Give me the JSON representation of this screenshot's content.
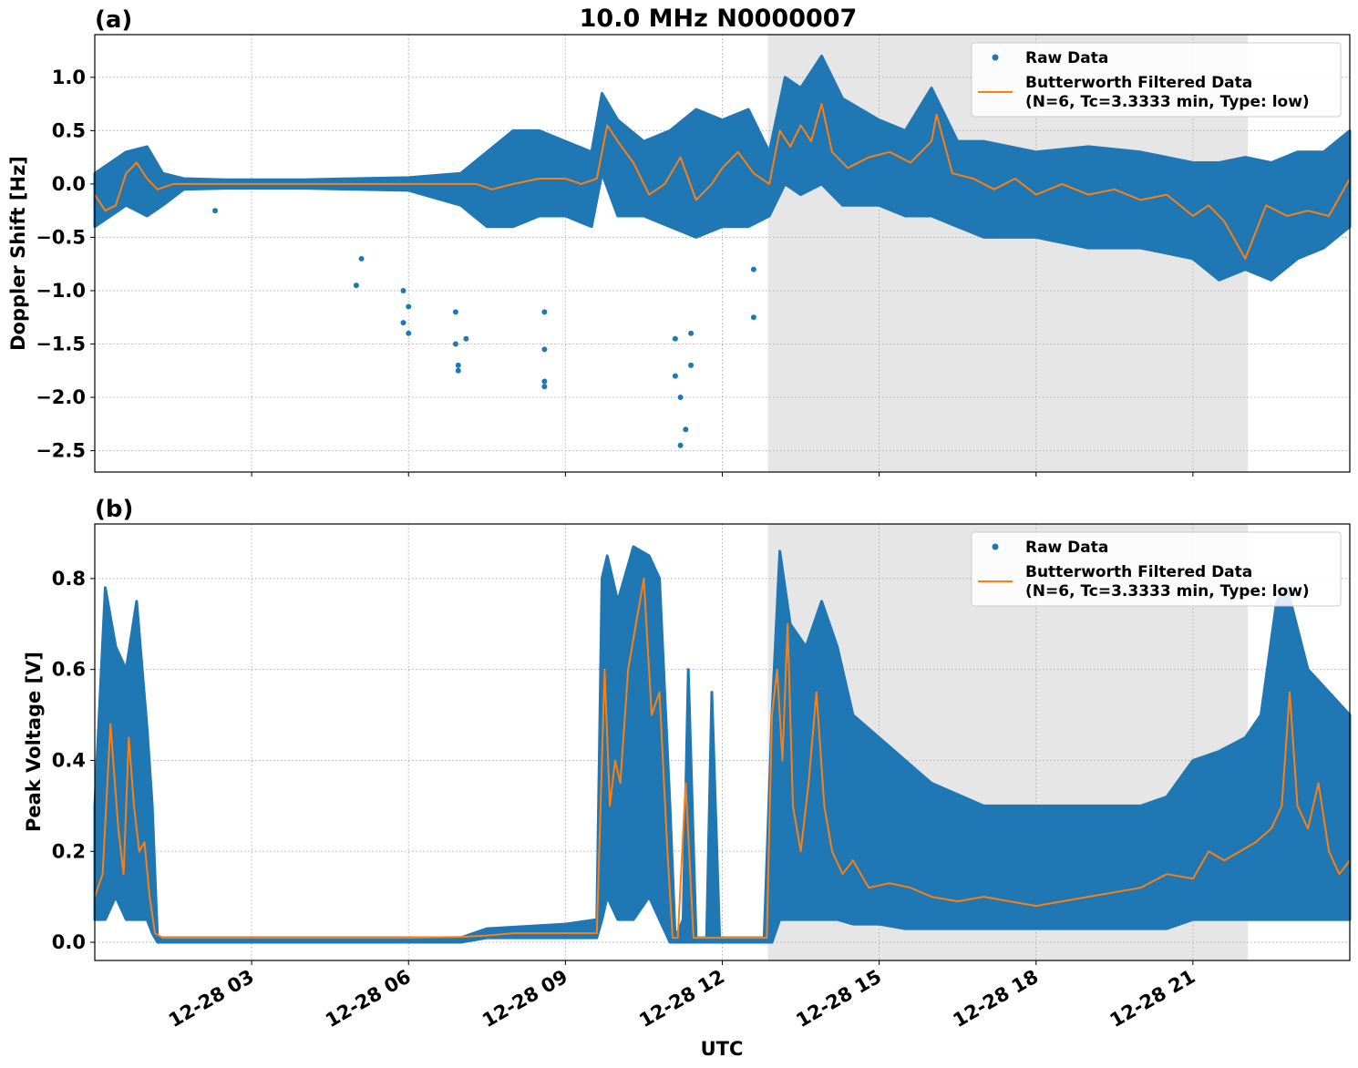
{
  "title": "10.0 MHz N0000007",
  "xlabel": "UTC",
  "xticks": [
    "12-28 03",
    "12-28 06",
    "12-28 09",
    "12-28 12",
    "12-28 15",
    "12-28 18",
    "12-28 21"
  ],
  "legend": {
    "raw_label": "Raw Data",
    "filtered_label_line1": "Butterworth Filtered Data",
    "filtered_label_line2": "(N=6, Tc=3.3333 min, Type: low)",
    "placement": "top-right"
  },
  "colors": {
    "raw": "#1f77b4",
    "filtered": "#ff7f0e",
    "shade": "#e6e6e6",
    "grid": "#b0b0b0"
  },
  "chart_data": [
    {
      "type": "scatter",
      "panel_label": "(a)",
      "ylabel": "Doppler Shift [Hz]",
      "xlim_hours": [
        0.0,
        24.0
      ],
      "ylim": [
        -2.7,
        1.4
      ],
      "yticks": [
        1.0,
        0.5,
        0.0,
        -0.5,
        -1.0,
        -1.5,
        -2.0,
        -2.5
      ],
      "ytick_labels": [
        "1.0",
        "0.5",
        "0.0",
        "−0.5",
        "−1.0",
        "−1.5",
        "−2.0",
        "−2.5"
      ],
      "grid": true,
      "shaded_interval_hours": [
        12.87,
        22.05
      ],
      "series": [
        {
          "name": "Raw Data",
          "style": "band",
          "x": [
            0.0,
            0.3,
            0.6,
            1.0,
            1.3,
            1.7,
            2.5,
            4.0,
            5.0,
            6.0,
            7.0,
            7.5,
            8.0,
            8.5,
            9.0,
            9.5,
            9.7,
            10.0,
            10.5,
            11.0,
            11.5,
            12.0,
            12.5,
            12.9,
            13.2,
            13.5,
            13.9,
            14.3,
            15.0,
            15.5,
            16.0,
            16.5,
            17.0,
            18.0,
            19.0,
            20.0,
            21.0,
            21.5,
            22.0,
            22.5,
            23.0,
            23.5,
            24.0
          ],
          "upper": [
            0.1,
            0.2,
            0.3,
            0.35,
            0.1,
            0.05,
            0.04,
            0.04,
            0.05,
            0.06,
            0.1,
            0.3,
            0.5,
            0.5,
            0.4,
            0.3,
            0.85,
            0.6,
            0.4,
            0.5,
            0.7,
            0.6,
            0.7,
            0.3,
            1.0,
            0.9,
            1.2,
            0.8,
            0.6,
            0.5,
            0.9,
            0.4,
            0.4,
            0.3,
            0.35,
            0.3,
            0.2,
            0.2,
            0.25,
            0.2,
            0.3,
            0.3,
            0.5
          ],
          "lower": [
            -0.4,
            -0.3,
            -0.2,
            -0.3,
            -0.2,
            -0.05,
            -0.04,
            -0.04,
            -0.05,
            -0.06,
            -0.2,
            -0.4,
            -0.4,
            -0.3,
            -0.3,
            -0.4,
            0.1,
            -0.3,
            -0.3,
            -0.4,
            -0.5,
            -0.4,
            -0.4,
            -0.3,
            0.0,
            -0.1,
            0.0,
            -0.2,
            -0.2,
            -0.3,
            -0.3,
            -0.4,
            -0.5,
            -0.5,
            -0.6,
            -0.6,
            -0.7,
            -0.9,
            -0.8,
            -0.9,
            -0.7,
            -0.6,
            -0.4
          ]
        },
        {
          "name": "Raw Data",
          "style": "outliers",
          "x": [
            2.3,
            5.0,
            5.1,
            5.9,
            5.9,
            6.0,
            6.0,
            6.9,
            6.9,
            6.95,
            6.95,
            7.1,
            8.6,
            8.6,
            8.6,
            8.6,
            11.1,
            11.1,
            11.2,
            11.2,
            11.3,
            11.4,
            11.4,
            12.6,
            12.6
          ],
          "y": [
            -0.25,
            -0.95,
            -0.7,
            -1.0,
            -1.3,
            -1.4,
            -1.15,
            -1.2,
            -1.5,
            -1.75,
            -1.7,
            -1.45,
            -1.2,
            -1.55,
            -1.85,
            -1.9,
            -1.45,
            -1.8,
            -2.0,
            -2.45,
            -2.3,
            -1.7,
            -1.4,
            -1.25,
            -0.8
          ]
        },
        {
          "name": "Butterworth Filtered Data",
          "style": "line",
          "x": [
            0.0,
            0.2,
            0.4,
            0.6,
            0.8,
            1.0,
            1.2,
            1.5,
            2.0,
            3.0,
            4.0,
            5.0,
            6.0,
            7.0,
            7.3,
            7.6,
            8.0,
            8.5,
            9.0,
            9.3,
            9.6,
            9.8,
            10.0,
            10.3,
            10.6,
            10.9,
            11.2,
            11.5,
            11.8,
            12.0,
            12.3,
            12.6,
            12.9,
            13.1,
            13.3,
            13.5,
            13.7,
            13.9,
            14.1,
            14.4,
            14.8,
            15.2,
            15.6,
            16.0,
            16.1,
            16.4,
            16.8,
            17.2,
            17.6,
            18.0,
            18.5,
            19.0,
            19.5,
            20.0,
            20.5,
            21.0,
            21.3,
            21.6,
            22.0,
            22.4,
            22.8,
            23.2,
            23.6,
            24.0
          ],
          "y": [
            -0.1,
            -0.25,
            -0.2,
            0.1,
            0.2,
            0.05,
            -0.05,
            0.0,
            0.0,
            0.0,
            0.0,
            0.0,
            0.0,
            0.0,
            0.0,
            -0.05,
            0.0,
            0.05,
            0.05,
            0.0,
            0.05,
            0.55,
            0.4,
            0.2,
            -0.1,
            0.0,
            0.25,
            -0.15,
            0.0,
            0.15,
            0.3,
            0.1,
            0.0,
            0.5,
            0.35,
            0.55,
            0.4,
            0.75,
            0.3,
            0.15,
            0.25,
            0.3,
            0.2,
            0.4,
            0.65,
            0.1,
            0.05,
            -0.05,
            0.05,
            -0.1,
            0.0,
            -0.1,
            -0.05,
            -0.15,
            -0.1,
            -0.3,
            -0.2,
            -0.35,
            -0.7,
            -0.2,
            -0.3,
            -0.25,
            -0.3,
            0.05
          ]
        }
      ]
    },
    {
      "type": "scatter",
      "panel_label": "(b)",
      "ylabel": "Peak Voltage [V]",
      "xlim_hours": [
        0.0,
        24.0
      ],
      "ylim": [
        -0.04,
        0.92
      ],
      "yticks": [
        0.0,
        0.2,
        0.4,
        0.6,
        0.8
      ],
      "ytick_labels": [
        "0.0",
        "0.2",
        "0.4",
        "0.6",
        "0.8"
      ],
      "grid": true,
      "shaded_interval_hours": [
        12.87,
        22.05
      ],
      "series": [
        {
          "name": "Raw Data",
          "style": "band",
          "x": [
            0.0,
            0.2,
            0.4,
            0.6,
            0.8,
            1.0,
            1.1,
            1.2,
            1.5,
            3.0,
            6.0,
            7.0,
            7.5,
            9.0,
            9.6,
            9.7,
            9.8,
            10.0,
            10.3,
            10.6,
            10.8,
            11.0,
            11.1,
            11.25,
            11.35,
            11.5,
            11.7,
            11.8,
            11.95,
            12.2,
            12.8,
            12.95,
            13.1,
            13.3,
            13.6,
            13.9,
            14.2,
            14.5,
            15.0,
            15.5,
            16.0,
            17.0,
            18.0,
            19.0,
            20.0,
            20.5,
            21.0,
            21.5,
            22.0,
            22.3,
            22.6,
            22.8,
            23.2,
            23.6,
            24.0
          ],
          "upper": [
            0.3,
            0.78,
            0.65,
            0.6,
            0.75,
            0.47,
            0.3,
            0.01,
            0.01,
            0.01,
            0.01,
            0.01,
            0.03,
            0.04,
            0.05,
            0.8,
            0.85,
            0.75,
            0.87,
            0.85,
            0.8,
            0.3,
            0.01,
            0.05,
            0.6,
            0.01,
            0.01,
            0.55,
            0.01,
            0.01,
            0.01,
            0.5,
            0.86,
            0.7,
            0.65,
            0.75,
            0.65,
            0.5,
            0.45,
            0.4,
            0.35,
            0.3,
            0.3,
            0.3,
            0.3,
            0.32,
            0.4,
            0.42,
            0.45,
            0.5,
            0.75,
            0.78,
            0.6,
            0.55,
            0.5
          ],
          "lower": [
            0.05,
            0.05,
            0.1,
            0.05,
            0.05,
            0.05,
            0.02,
            0.0,
            0.0,
            0.0,
            0.0,
            0.0,
            0.01,
            0.01,
            0.01,
            0.05,
            0.1,
            0.05,
            0.05,
            0.1,
            0.05,
            0.0,
            0.0,
            0.0,
            0.0,
            0.0,
            0.0,
            0.0,
            0.0,
            0.0,
            0.0,
            0.0,
            0.05,
            0.05,
            0.05,
            0.05,
            0.05,
            0.04,
            0.04,
            0.03,
            0.03,
            0.03,
            0.03,
            0.03,
            0.03,
            0.03,
            0.05,
            0.05,
            0.05,
            0.05,
            0.05,
            0.05,
            0.05,
            0.05,
            0.05
          ]
        },
        {
          "name": "Butterworth Filtered Data",
          "style": "line",
          "x": [
            0.0,
            0.15,
            0.3,
            0.45,
            0.55,
            0.65,
            0.75,
            0.85,
            0.95,
            1.05,
            1.15,
            1.3,
            2.0,
            4.0,
            6.0,
            7.0,
            7.5,
            8.0,
            9.0,
            9.6,
            9.75,
            9.85,
            9.95,
            10.05,
            10.2,
            10.35,
            10.5,
            10.65,
            10.8,
            10.95,
            11.05,
            11.15,
            11.3,
            11.45,
            11.55,
            11.7,
            11.85,
            12.0,
            12.5,
            12.85,
            12.95,
            13.05,
            13.15,
            13.25,
            13.35,
            13.5,
            13.65,
            13.8,
            13.95,
            14.1,
            14.3,
            14.5,
            14.8,
            15.2,
            15.6,
            16.0,
            16.5,
            17.0,
            17.5,
            18.0,
            18.5,
            19.0,
            19.5,
            20.0,
            20.5,
            21.0,
            21.3,
            21.6,
            21.9,
            22.2,
            22.5,
            22.7,
            22.85,
            23.0,
            23.2,
            23.4,
            23.6,
            23.8,
            24.0
          ],
          "y": [
            0.1,
            0.15,
            0.48,
            0.25,
            0.15,
            0.45,
            0.3,
            0.2,
            0.22,
            0.1,
            0.02,
            0.01,
            0.01,
            0.01,
            0.01,
            0.012,
            0.015,
            0.02,
            0.02,
            0.02,
            0.6,
            0.3,
            0.4,
            0.35,
            0.6,
            0.7,
            0.8,
            0.5,
            0.55,
            0.2,
            0.01,
            0.01,
            0.35,
            0.01,
            0.01,
            0.01,
            0.01,
            0.01,
            0.01,
            0.01,
            0.5,
            0.6,
            0.4,
            0.7,
            0.3,
            0.2,
            0.35,
            0.55,
            0.3,
            0.2,
            0.15,
            0.18,
            0.12,
            0.13,
            0.12,
            0.1,
            0.09,
            0.1,
            0.09,
            0.08,
            0.09,
            0.1,
            0.11,
            0.12,
            0.15,
            0.14,
            0.2,
            0.18,
            0.2,
            0.22,
            0.25,
            0.3,
            0.55,
            0.3,
            0.25,
            0.35,
            0.2,
            0.15,
            0.18
          ]
        }
      ]
    }
  ]
}
